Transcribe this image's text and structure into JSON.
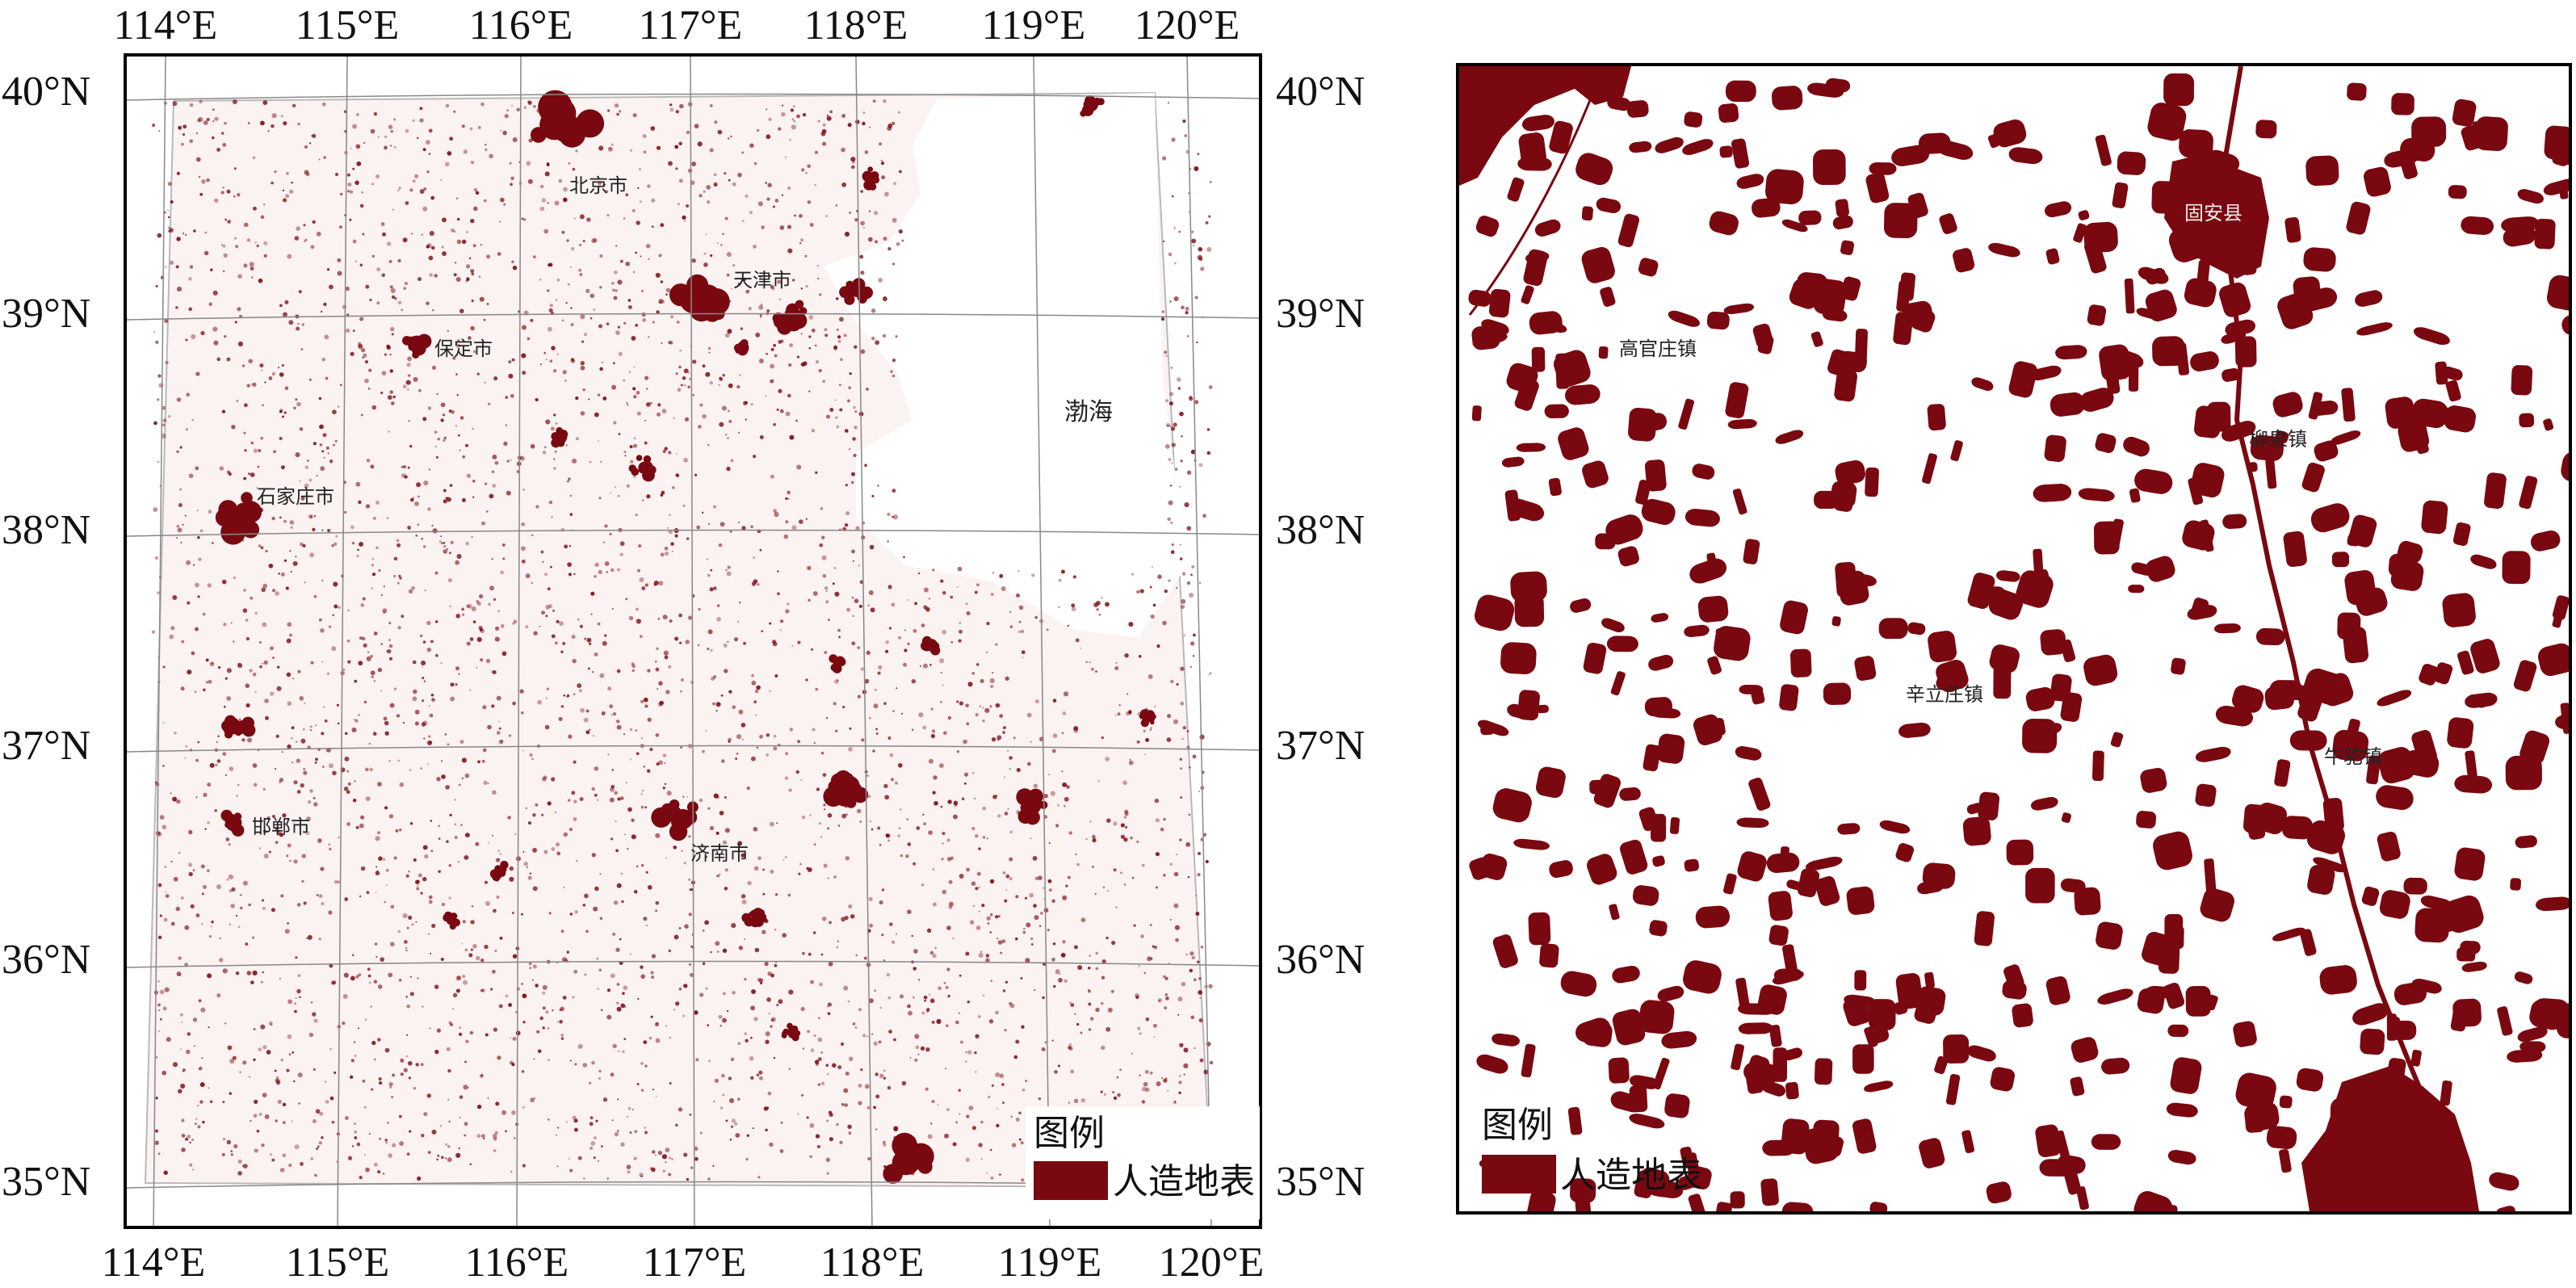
{
  "left_map": {
    "lon_labels": [
      "114°E",
      "115°E",
      "116°E",
      "117°E",
      "118°E",
      "119°E",
      "120°E"
    ],
    "lat_labels": [
      "40°N",
      "39°N",
      "38°N",
      "37°N",
      "36°N",
      "35°N"
    ],
    "sea_label": "渤海",
    "cities": [
      {
        "name": "北京市",
        "lon": 116.45,
        "lat": 39.88
      },
      {
        "name": "天津市",
        "lon": 117.25,
        "lat": 39.14
      },
      {
        "name": "保定市",
        "lon": 115.5,
        "lat": 38.87
      },
      {
        "name": "石家庄市",
        "lon": 114.5,
        "lat": 38.04
      },
      {
        "name": "邯郸市",
        "lon": 114.5,
        "lat": 36.6
      },
      {
        "name": "济南市",
        "lon": 117.0,
        "lat": 36.66
      }
    ],
    "legend": {
      "title": "图例",
      "item": "人造地表",
      "color": "#7a0810"
    }
  },
  "right_map": {
    "places": [
      {
        "name": "固安县"
      },
      {
        "name": "高官庄镇"
      },
      {
        "name": "柳泉镇"
      },
      {
        "name": "辛立庄镇"
      },
      {
        "name": "牛驼镇"
      }
    ],
    "legend": {
      "title": "图例",
      "item": "人造地表",
      "color": "#7a0810"
    }
  },
  "colors": {
    "urban": "#7a0810",
    "frame": "#000000",
    "grid": "#888888"
  }
}
